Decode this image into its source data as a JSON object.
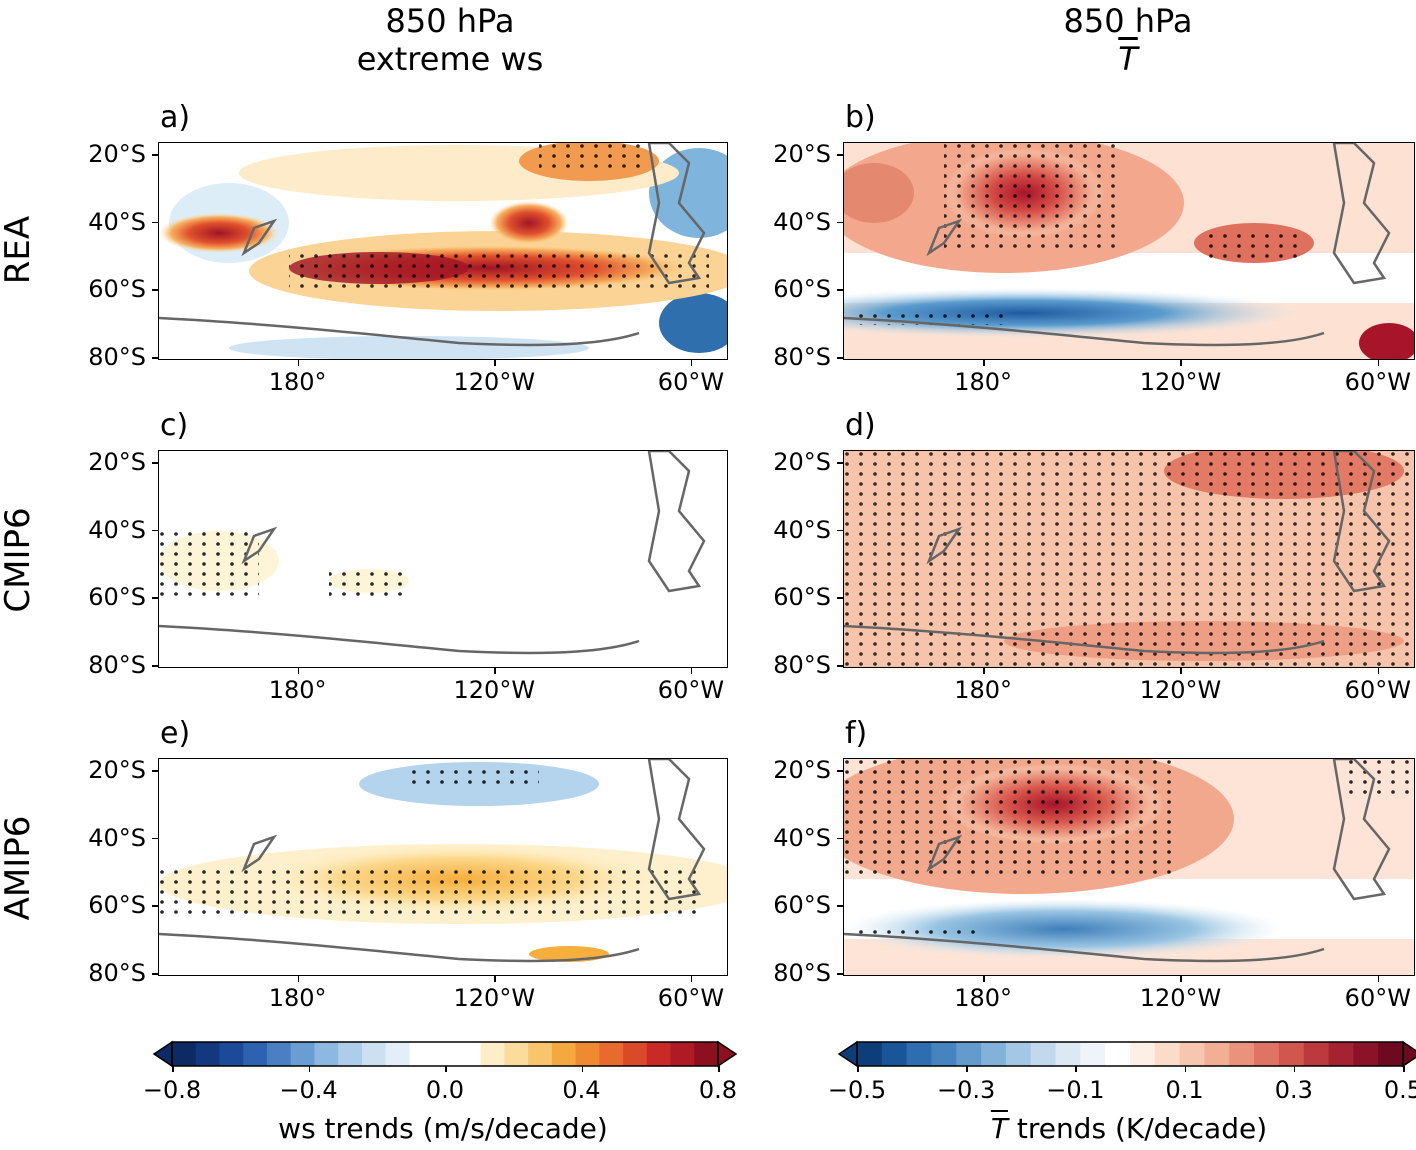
{
  "columns": [
    {
      "line1": "850 hPa",
      "line2": "extreme ws"
    },
    {
      "line1": "850 hPa",
      "line2": "T"
    }
  ],
  "rows": [
    "REA",
    "CMIP6",
    "AMIP6"
  ],
  "panels": [
    "a)",
    "b)",
    "c)",
    "d)",
    "e)",
    "f)"
  ],
  "y_ticks": [
    "20°S",
    "40°S",
    "60°S",
    "80°S"
  ],
  "x_ticks": [
    "180°",
    "120°W",
    "60°W"
  ],
  "colorbars": [
    {
      "label": "ws trends (m/s/decade)",
      "ticks": [
        "−0.8",
        "−0.4",
        "0.0",
        "0.4",
        "0.8"
      ],
      "range": [
        -0.8,
        0.8
      ]
    },
    {
      "label_suffix": " trends (K/decade)",
      "label_symbol": "T",
      "ticks": [
        "−0.5",
        "−0.3",
        "−0.1",
        "0.1",
        "0.3",
        "0.5"
      ],
      "range": [
        -0.5,
        0.5
      ]
    }
  ],
  "chart_data": [
    {
      "type": "heatmap",
      "panel": "a)",
      "variable": "extreme ws trend",
      "dataset": "REA",
      "units": "m/s/decade",
      "lon_range": [
        "150°E",
        "50°W"
      ],
      "lat_range": [
        "15°S",
        "80°S"
      ],
      "feature": "positive band ~50–58°S peak ~0.8"
    },
    {
      "type": "heatmap",
      "panel": "b)",
      "variable": "T trend",
      "dataset": "REA",
      "units": "K/decade",
      "feature": "warming ~20–40°S peak ~0.4, cooling ~65–75°S ~-0.3"
    },
    {
      "type": "heatmap",
      "panel": "c)",
      "variable": "extreme ws trend",
      "dataset": "CMIP6",
      "units": "m/s/decade",
      "feature": "near zero, weak positive ~45–60°S"
    },
    {
      "type": "heatmap",
      "panel": "d)",
      "variable": "T trend",
      "dataset": "CMIP6",
      "units": "K/decade",
      "feature": "uniform warming ~0.15–0.2"
    },
    {
      "type": "heatmap",
      "panel": "e)",
      "variable": "extreme ws trend",
      "dataset": "AMIP6",
      "units": "m/s/decade",
      "feature": "positive band ~50–60°S ~0.3, negative ~25°S"
    },
    {
      "type": "heatmap",
      "panel": "f)",
      "variable": "T trend",
      "dataset": "AMIP6",
      "units": "K/decade",
      "feature": "warming 20–40°S peak ~0.35, cooling ~65°S ~-0.2"
    }
  ]
}
